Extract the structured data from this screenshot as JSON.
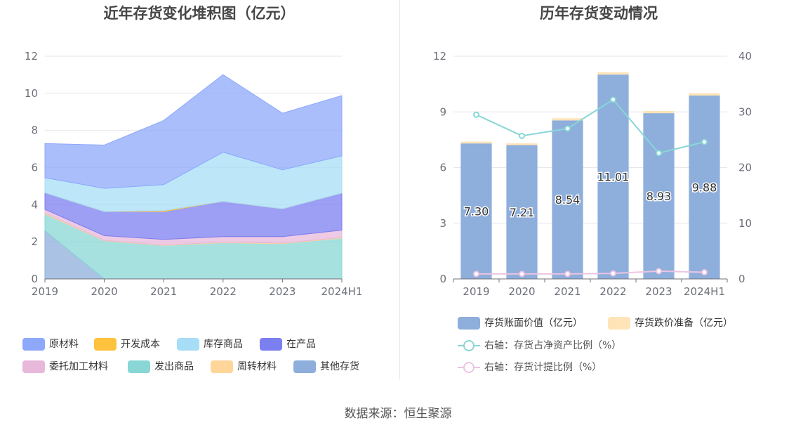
{
  "source": "数据来源：恒生聚源",
  "left_chart": {
    "title": "近年存货变化堆积图（亿元）",
    "chart_data": {
      "type": "area",
      "stacked": true,
      "categories": [
        "2019",
        "2020",
        "2021",
        "2022",
        "2023",
        "2024H1"
      ],
      "ylim": [
        0,
        12
      ],
      "yticks": [
        "0",
        "2",
        "4",
        "6",
        "8",
        "10",
        "12"
      ],
      "grid": true,
      "legend_position": "bottom",
      "series": [
        {
          "name": "其他存货",
          "color": "#8eaedb",
          "values": [
            2.6,
            0,
            0,
            0,
            0,
            0
          ]
        },
        {
          "name": "发出商品",
          "color": "#88d7d6",
          "values": [
            0.9,
            2.05,
            1.8,
            1.95,
            1.9,
            2.2
          ]
        },
        {
          "name": "周转材料",
          "color": "#ffd699",
          "values": [
            0.05,
            0.03,
            0.03,
            0.03,
            0.03,
            0.03
          ]
        },
        {
          "name": "委托加工材料",
          "color": "#e8b8db",
          "values": [
            0.2,
            0.25,
            0.3,
            0.3,
            0.35,
            0.4
          ]
        },
        {
          "name": "在产品",
          "color": "#7b7ff0",
          "values": [
            0.9,
            1.3,
            1.5,
            1.9,
            1.5,
            2.0
          ]
        },
        {
          "name": "开发成本",
          "color": "#ffc23d",
          "values": [
            0,
            0,
            0.05,
            0,
            0,
            0
          ]
        },
        {
          "name": "库存商品",
          "color": "#a8ddf7",
          "values": [
            0.8,
            1.25,
            1.4,
            2.65,
            2.1,
            2.0
          ]
        },
        {
          "name": "原材料",
          "color": "#8ea8fb",
          "values": [
            1.85,
            2.33,
            3.46,
            4.18,
            3.05,
            3.25
          ]
        }
      ],
      "legend_order": [
        "原材料",
        "开发成本",
        "库存商品",
        "在产品",
        "委托加工材料",
        "发出商品",
        "周转材料",
        "其他存货"
      ]
    }
  },
  "right_chart": {
    "title": "历年存货变动情况",
    "chart_data": {
      "type": "bar",
      "categories": [
        "2019",
        "2020",
        "2021",
        "2022",
        "2023",
        "2024H1"
      ],
      "ylim": [
        0,
        12
      ],
      "yticks": [
        "0",
        "3",
        "6",
        "9",
        "12"
      ],
      "y2lim": [
        0,
        40
      ],
      "y2ticks": [
        "0",
        "10",
        "20",
        "30",
        "40"
      ],
      "grid": true,
      "legend_position": "bottom",
      "series": [
        {
          "name": "存货账面价值（亿元）",
          "type": "bar",
          "color": "#8eaedb",
          "values": [
            7.3,
            7.21,
            8.54,
            11.01,
            8.93,
            9.88
          ],
          "labels": [
            "7.30",
            "7.21",
            "8.54",
            "11.01",
            "8.93",
            "9.88"
          ]
        },
        {
          "name": "存货跌价准备（亿元）",
          "type": "bar",
          "color": "#ffe4b8",
          "values": [
            0.1,
            0.1,
            0.12,
            0.12,
            0.12,
            0.13
          ]
        },
        {
          "name": "右轴：存货占净资产比例（%）",
          "type": "line",
          "axis": "right",
          "color": "#88d7d6",
          "values": [
            29.5,
            25.7,
            27.0,
            32.2,
            22.6,
            24.6
          ]
        },
        {
          "name": "右轴：存货计提比例（%）",
          "type": "line",
          "axis": "right",
          "color": "#ebc4e2",
          "values": [
            0.9,
            0.9,
            0.9,
            1.0,
            1.4,
            1.2
          ]
        }
      ]
    }
  }
}
